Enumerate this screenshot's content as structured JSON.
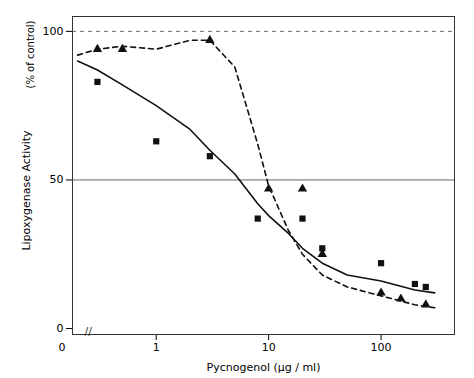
{
  "chart_data": {
    "type": "line",
    "xlabel": "Pycnogenol (μg / ml)",
    "ylabel": "Lipoxygenase Activity",
    "ylabel_sub": "(% of control)",
    "log": "x",
    "grid": false,
    "xlim": [
      0.18,
      450
    ],
    "ylim": [
      -2,
      105
    ],
    "xticks": [
      1,
      10,
      100
    ],
    "yticks": [
      0,
      50,
      100
    ],
    "reference_lines": [
      {
        "value": 100,
        "line_style": "dashed",
        "color": "#666666"
      },
      {
        "value": 50,
        "line_style": "solid",
        "color": "#666666"
      }
    ],
    "annotations": [
      "0",
      "//"
    ],
    "series": [
      {
        "type": "line",
        "line_style": "solid",
        "color": "#111111",
        "x": [
          0.2,
          0.3,
          0.5,
          1.0,
          2.0,
          3.0,
          5.0,
          8.0,
          10.0,
          15.0,
          20.0,
          30.0,
          50.0,
          100.0,
          200.0,
          300.0
        ],
        "values": [
          90,
          87,
          82,
          75,
          67,
          60,
          52,
          42,
          38,
          32,
          27,
          22,
          18,
          16,
          13,
          12
        ]
      },
      {
        "type": "line",
        "line_style": "dashed",
        "color": "#111111",
        "x": [
          0.2,
          0.3,
          0.5,
          1.0,
          2.0,
          3.0,
          5.0,
          8.0,
          10.0,
          15.0,
          20.0,
          30.0,
          50.0,
          100.0,
          200.0,
          300.0
        ],
        "values": [
          92,
          94,
          95,
          94,
          97,
          97,
          88,
          62,
          48,
          33,
          25,
          18,
          14,
          11,
          8,
          7
        ]
      },
      {
        "type": "scatter",
        "marker": "square",
        "color": "#111111",
        "x": [
          0.3,
          1.0,
          3.0,
          8.0,
          20.0,
          30.0,
          100.0,
          200.0,
          250.0
        ],
        "values": [
          83,
          63,
          58,
          37,
          37,
          27,
          22,
          15,
          14
        ]
      },
      {
        "type": "scatter",
        "marker": "triangle",
        "color": "#111111",
        "x": [
          0.3,
          0.5,
          3.0,
          10.0,
          20.0,
          30.0,
          100.0,
          150.0,
          250.0
        ],
        "values": [
          94,
          94,
          97,
          47,
          47,
          25,
          12,
          10,
          8
        ]
      }
    ]
  }
}
